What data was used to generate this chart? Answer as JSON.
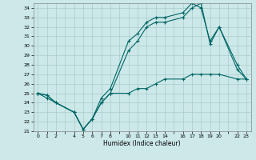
{
  "xlabel": "Humidex (Indice chaleur)",
  "background_color": "#cce8e8",
  "grid_color": "#aacccc",
  "line_color": "#006666",
  "ylim": [
    21,
    34.5
  ],
  "yticks": [
    21,
    22,
    23,
    24,
    25,
    26,
    27,
    28,
    29,
    30,
    31,
    32,
    33,
    34
  ],
  "xtick_positions": [
    0,
    1,
    2,
    3,
    4,
    5,
    6,
    7,
    8,
    9,
    10,
    11,
    12,
    13,
    14,
    15,
    16,
    17,
    18,
    19,
    20,
    21,
    22,
    23
  ],
  "xtick_labels": [
    "0",
    "1",
    "2",
    "",
    "4",
    "5",
    "6",
    "7",
    "8",
    "",
    "10",
    "11",
    "12",
    "13",
    "14",
    "",
    "16",
    "17",
    "18",
    "19",
    "20",
    "",
    "22",
    "23"
  ],
  "xlim": [
    -0.5,
    23.5
  ],
  "line_top_x": [
    0,
    1,
    2,
    4,
    5,
    6,
    7,
    8,
    10,
    11,
    12,
    13,
    14,
    16,
    17,
    18,
    19,
    20,
    22,
    23
  ],
  "line_top_y": [
    25.0,
    24.8,
    24.0,
    23.0,
    21.2,
    22.3,
    24.5,
    25.5,
    30.5,
    31.3,
    32.5,
    33.0,
    33.0,
    33.5,
    34.5,
    34.0,
    30.5,
    32.0,
    28.0,
    26.5
  ],
  "line_mid_x": [
    0,
    1,
    2,
    4,
    5,
    6,
    7,
    8,
    10,
    11,
    12,
    13,
    14,
    16,
    17,
    18,
    19,
    20,
    22,
    23
  ],
  "line_mid_y": [
    25.0,
    24.8,
    24.0,
    23.0,
    21.2,
    22.3,
    24.0,
    25.0,
    29.5,
    30.5,
    32.0,
    32.5,
    32.5,
    33.0,
    34.0,
    34.5,
    30.2,
    32.0,
    27.5,
    26.5
  ],
  "line_low_x": [
    0,
    1,
    2,
    4,
    5,
    6,
    7,
    8,
    10,
    11,
    12,
    13,
    14,
    16,
    17,
    18,
    19,
    20,
    22,
    23
  ],
  "line_low_y": [
    25.0,
    24.5,
    24.0,
    23.0,
    21.2,
    22.3,
    24.0,
    25.0,
    25.0,
    25.5,
    25.5,
    26.0,
    26.5,
    26.5,
    27.0,
    27.0,
    27.0,
    27.0,
    26.5,
    26.5
  ]
}
